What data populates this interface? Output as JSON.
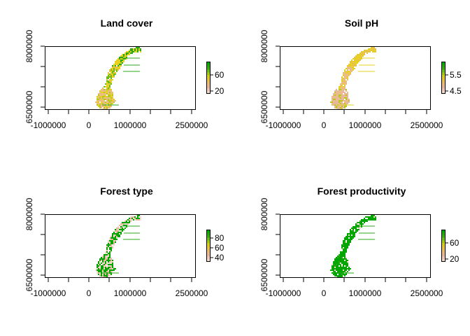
{
  "figure": {
    "background": "#ffffff"
  },
  "chart_data": [
    {
      "type": "heatmap",
      "title": "Land cover",
      "xlabel": "",
      "ylabel": "",
      "xlim": [
        -1000000,
        2500000
      ],
      "ylim": [
        6500000,
        8000000
      ],
      "x_tick_labels": [
        "-1000000",
        "0",
        "1000000",
        "2500000"
      ],
      "y_tick_labels": [
        "6500000",
        "8000000"
      ],
      "legend": {
        "position": "right",
        "tick_labels": [
          "20",
          "60"
        ],
        "colors": [
          "#e8b7a0",
          "#e6d21e",
          "#2aa81a",
          "#00a600"
        ]
      }
    },
    {
      "type": "heatmap",
      "title": "Soil pH",
      "xlabel": "",
      "ylabel": "",
      "xlim": [
        -1000000,
        2500000
      ],
      "ylim": [
        6500000,
        8000000
      ],
      "x_tick_labels": [
        "-1000000",
        "0",
        "1000000",
        "2500000"
      ],
      "y_tick_labels": [
        "6500000",
        "8000000"
      ],
      "legend": {
        "position": "right",
        "tick_labels": [
          "4.5",
          "5.5"
        ],
        "colors": [
          "#e8b7a0",
          "#e6d21e",
          "#2aa81a",
          "#00a600"
        ]
      }
    },
    {
      "type": "heatmap",
      "title": "Forest type",
      "xlabel": "",
      "ylabel": "",
      "xlim": [
        -1000000,
        2500000
      ],
      "ylim": [
        6500000,
        8000000
      ],
      "x_tick_labels": [
        "-1000000",
        "0",
        "1000000",
        "2500000"
      ],
      "y_tick_labels": [
        "6500000",
        "8000000"
      ],
      "legend": {
        "position": "right",
        "tick_labels": [
          "40",
          "60",
          "80"
        ],
        "colors": [
          "#e8b7a0",
          "#e6d21e",
          "#2aa81a",
          "#00a600"
        ]
      }
    },
    {
      "type": "heatmap",
      "title": "Forest productivity",
      "xlabel": "",
      "ylabel": "",
      "xlim": [
        -1000000,
        2500000
      ],
      "ylim": [
        6500000,
        8000000
      ],
      "x_tick_labels": [
        "-1000000",
        "0",
        "1000000",
        "2500000"
      ],
      "y_tick_labels": [
        "6500000",
        "8000000"
      ],
      "legend": {
        "position": "right",
        "tick_labels": [
          "20",
          "60"
        ],
        "colors": [
          "#e8b7a0",
          "#e6d21e",
          "#2aa81a",
          "#00a600"
        ]
      }
    }
  ]
}
